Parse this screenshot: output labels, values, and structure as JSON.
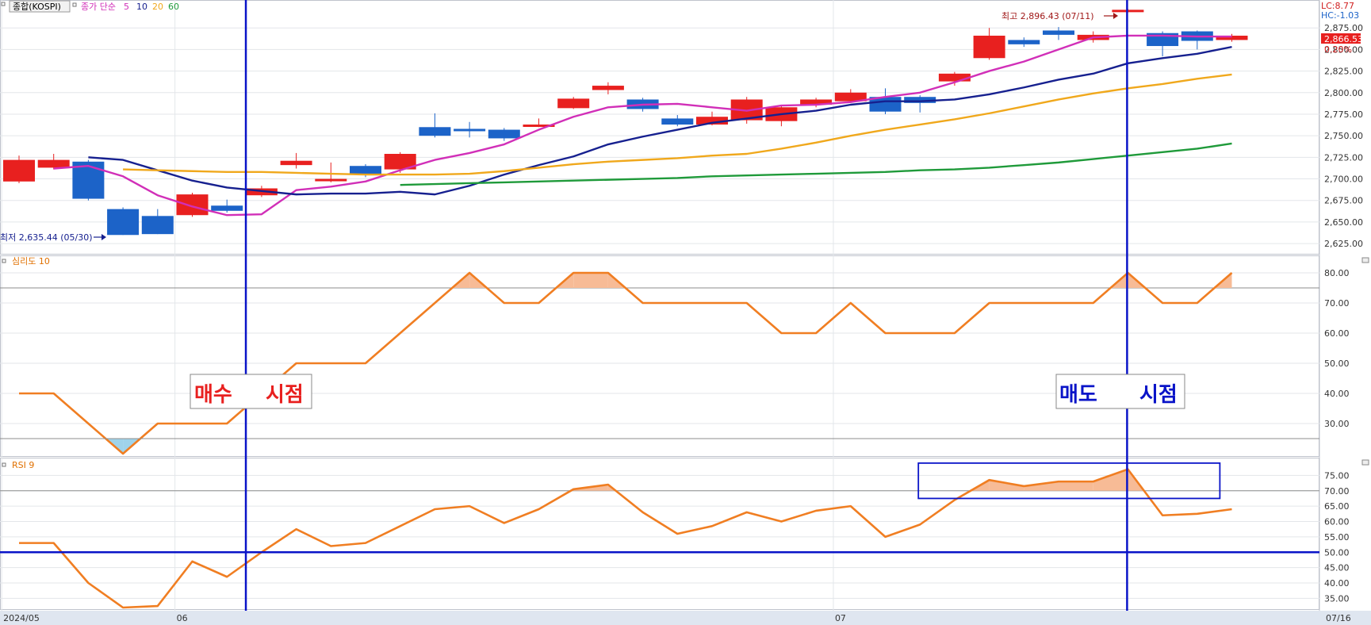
{
  "header": {
    "symbol": "종합(KOSPI)",
    "ma_label": "종가 단순",
    "ma_periods": [
      "5",
      "10",
      "20",
      "60"
    ],
    "lc": "LC:8.77",
    "hc": "HC:-1.03",
    "last_price": "2,866.53",
    "change_pct": "0.20%",
    "high_note": "최고 2,896.43 (07/11)",
    "low_note": "최저 2,635.44 (05/30)"
  },
  "panels": {
    "sentiment_label": "심리도 10",
    "rsi_label": "RSI 9"
  },
  "annotations": {
    "buy_left": "매수",
    "buy_right": "시점",
    "sell_left": "매도",
    "sell_right": "시점"
  },
  "x_axis": {
    "labels": [
      {
        "text": "2024/05",
        "index": -0.5
      },
      {
        "text": "06",
        "index": 4.5
      },
      {
        "text": "07",
        "index": 23.5
      }
    ],
    "right_label": "07/16"
  },
  "colors": {
    "up": "#e8201f",
    "down": "#1c63c8",
    "ma5": "#d12fb8",
    "ma10": "#16208f",
    "ma20": "#f0a81c",
    "ma60": "#1f9a3a",
    "osc": "#f07e22",
    "marker": "#0a14c8"
  },
  "chart_data": [
    {
      "type": "candlestick",
      "title": "종합(KOSPI)",
      "ylim": [
        2615,
        2900
      ],
      "ytick_labels": [
        "2,625.00",
        "2,650.00",
        "2,675.00",
        "2,700.00",
        "2,725.00",
        "2,750.00",
        "2,775.00",
        "2,800.00",
        "2,825.00",
        "2,850.00",
        "2,875.00"
      ],
      "yticks": [
        2625,
        2650,
        2675,
        2700,
        2725,
        2750,
        2775,
        2800,
        2825,
        2850,
        2875
      ],
      "candles": [
        {
          "o": 2697,
          "c": 2722,
          "h": 2727,
          "l": 2695
        },
        {
          "o": 2713,
          "c": 2722,
          "h": 2729,
          "l": 2711
        },
        {
          "o": 2720,
          "c": 2677,
          "h": 2722,
          "l": 2675
        },
        {
          "o": 2665,
          "c": 2635,
          "h": 2667,
          "l": 2635
        },
        {
          "o": 2657,
          "c": 2636,
          "h": 2665,
          "l": 2636
        },
        {
          "o": 2658,
          "c": 2682,
          "h": 2684,
          "l": 2656
        },
        {
          "o": 2669,
          "c": 2663,
          "h": 2676,
          "l": 2661
        },
        {
          "o": 2681,
          "c": 2689,
          "h": 2692,
          "l": 2679
        },
        {
          "o": 2716,
          "c": 2721,
          "h": 2730,
          "l": 2712
        },
        {
          "o": 2698,
          "c": 2700,
          "h": 2719,
          "l": 2696
        },
        {
          "o": 2715,
          "c": 2705,
          "h": 2717,
          "l": 2702
        },
        {
          "o": 2711,
          "c": 2729,
          "h": 2731,
          "l": 2707
        },
        {
          "o": 2760,
          "c": 2750,
          "h": 2776,
          "l": 2748
        },
        {
          "o": 2758,
          "c": 2757,
          "h": 2766,
          "l": 2748
        },
        {
          "o": 2757,
          "c": 2747,
          "h": 2759,
          "l": 2744
        },
        {
          "o": 2762,
          "c": 2763,
          "h": 2770,
          "l": 2760
        },
        {
          "o": 2782,
          "c": 2793,
          "h": 2795,
          "l": 2781
        },
        {
          "o": 2803,
          "c": 2808,
          "h": 2812,
          "l": 2798
        },
        {
          "o": 2792,
          "c": 2781,
          "h": 2794,
          "l": 2778
        },
        {
          "o": 2770,
          "c": 2763,
          "h": 2774,
          "l": 2761
        },
        {
          "o": 2763,
          "c": 2772,
          "h": 2778,
          "l": 2762
        },
        {
          "o": 2768,
          "c": 2792,
          "h": 2795,
          "l": 2764
        },
        {
          "o": 2767,
          "c": 2783,
          "h": 2785,
          "l": 2761
        },
        {
          "o": 2786,
          "c": 2792,
          "h": 2794,
          "l": 2783
        },
        {
          "o": 2790,
          "c": 2800,
          "h": 2804,
          "l": 2788
        },
        {
          "o": 2795,
          "c": 2778,
          "h": 2805,
          "l": 2775
        },
        {
          "o": 2795,
          "c": 2788,
          "h": 2797,
          "l": 2777
        },
        {
          "o": 2813,
          "c": 2822,
          "h": 2824,
          "l": 2808
        },
        {
          "o": 2840,
          "c": 2866,
          "h": 2875,
          "l": 2838
        },
        {
          "o": 2861,
          "c": 2856,
          "h": 2864,
          "l": 2853
        },
        {
          "o": 2872,
          "c": 2867,
          "h": 2876,
          "l": 2861
        },
        {
          "o": 2861,
          "c": 2867,
          "h": 2871,
          "l": 2858
        },
        {
          "o": 2894,
          "c": 2896,
          "h": 2897,
          "l": 2893
        },
        {
          "o": 2869,
          "c": 2854,
          "h": 2871,
          "l": 2842
        },
        {
          "o": 2871,
          "c": 2860,
          "h": 2872,
          "l": 2850
        },
        {
          "o": 2861,
          "c": 2866,
          "h": 2868,
          "l": 2859
        }
      ],
      "series": [
        {
          "name": "5",
          "values": [
            2712,
            2715,
            2703,
            2681,
            2668,
            2658,
            2659,
            2687,
            2691,
            2697,
            2710,
            2722,
            2730,
            2740,
            2757,
            2772,
            2783,
            2786,
            2787,
            2783,
            2779,
            2785,
            2786,
            2789,
            2795,
            2800,
            2812,
            2825,
            2836,
            2850,
            2864,
            2866,
            2866,
            2865,
            2865
          ]
        },
        {
          "name": "10",
          "values": [
            2725,
            2722,
            2710,
            2698,
            2690,
            2686,
            2682,
            2683,
            2683,
            2685,
            2682,
            2692,
            2705,
            2716,
            2726,
            2740,
            2749,
            2757,
            2765,
            2770,
            2775,
            2779,
            2786,
            2790,
            2790,
            2792,
            2798,
            2806,
            2815,
            2822,
            2834,
            2840,
            2845,
            2853
          ]
        },
        {
          "name": "20",
          "values": [
            2711,
            2710,
            2709,
            2708,
            2708,
            2707,
            2706,
            2705,
            2705,
            2705,
            2706,
            2709,
            2713,
            2717,
            2720,
            2722,
            2724,
            2727,
            2729,
            2735,
            2742,
            2750,
            2757,
            2763,
            2769,
            2776,
            2784,
            2792,
            2799,
            2805,
            2810,
            2816,
            2821
          ]
        },
        {
          "name": "60",
          "values": [
            2693,
            2694,
            2695,
            2696,
            2697,
            2698,
            2699,
            2700,
            2701,
            2703,
            2704,
            2705,
            2706,
            2707,
            2708,
            2710,
            2711,
            2713,
            2716,
            2719,
            2723,
            2727,
            2731,
            2735,
            2741
          ]
        }
      ]
    },
    {
      "type": "line",
      "title": "심리도 10",
      "ylim": [
        20,
        85
      ],
      "ytick_labels": [
        "30.00",
        "40.00",
        "50.00",
        "60.00",
        "70.00",
        "80.00"
      ],
      "yticks": [
        30,
        40,
        50,
        60,
        70,
        80
      ],
      "hlines": [
        75,
        25
      ],
      "series": [
        {
          "name": "심리도 10",
          "values": [
            40,
            40,
            30,
            20,
            30,
            30,
            30,
            40,
            50,
            50,
            50,
            60,
            70,
            80,
            70,
            70,
            80,
            80,
            70,
            70,
            70,
            70,
            60,
            60,
            70,
            60,
            60,
            60,
            70,
            70,
            70,
            70,
            80,
            70,
            70,
            80
          ]
        }
      ]
    },
    {
      "type": "line",
      "title": "RSI 9",
      "ylim": [
        32,
        80
      ],
      "ytick_labels": [
        "35.00",
        "40.00",
        "45.00",
        "50.00",
        "55.00",
        "60.00",
        "65.00",
        "70.00",
        "75.00"
      ],
      "yticks": [
        35,
        40,
        45,
        50,
        55,
        60,
        65,
        70,
        75
      ],
      "hlines": [
        70,
        50
      ],
      "series": [
        {
          "name": "RSI 9",
          "values": [
            53,
            53,
            40,
            32,
            32.5,
            47,
            42,
            50,
            57.5,
            52,
            53,
            58.5,
            64,
            65,
            59.5,
            64,
            70.5,
            72,
            63,
            56,
            58.5,
            63,
            60,
            63.5,
            65,
            55,
            59,
            67,
            73.5,
            71.5,
            73,
            73,
            77,
            62,
            62.5,
            64
          ]
        }
      ]
    }
  ]
}
